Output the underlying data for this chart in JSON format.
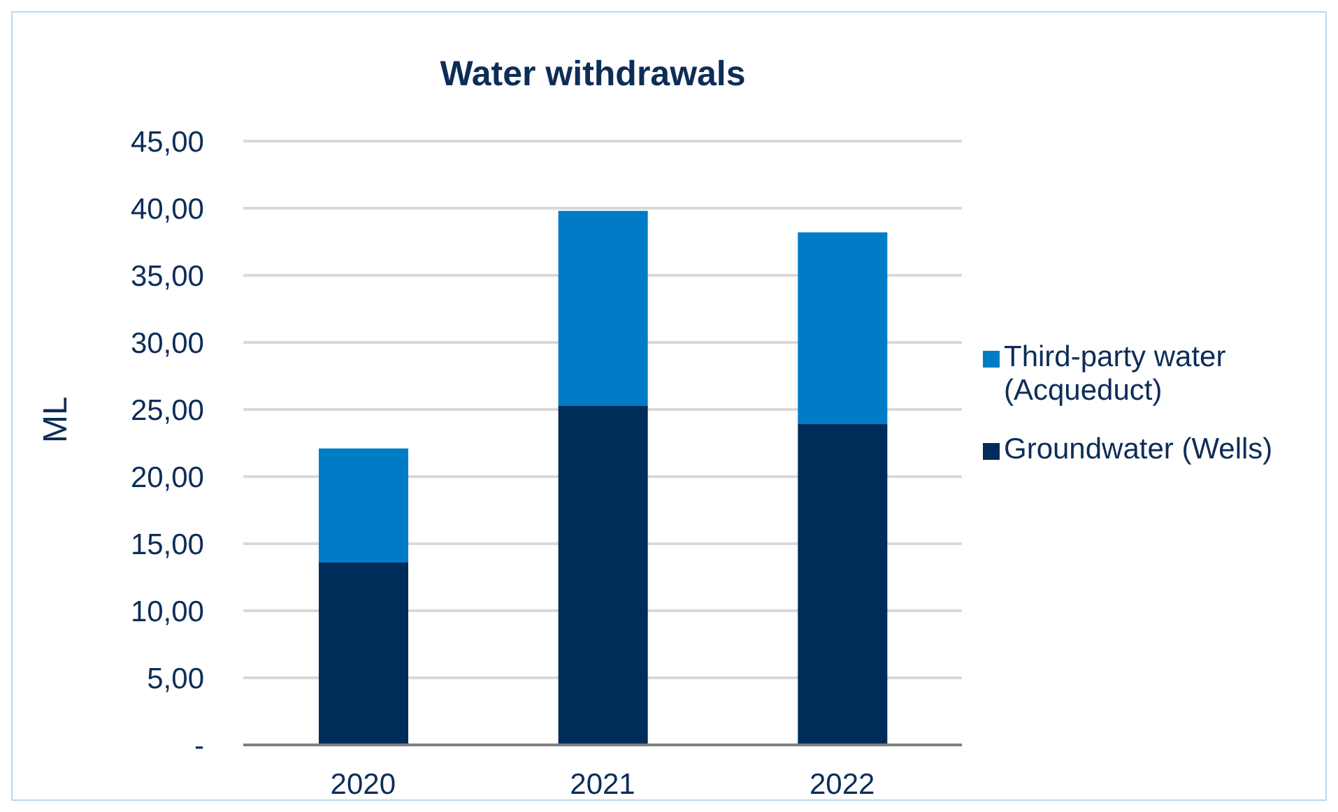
{
  "chart_data": {
    "type": "bar",
    "title": "Water withdrawals",
    "ylabel": "ML",
    "categories": [
      "2020",
      "2021",
      "2022"
    ],
    "stacked": true,
    "series": [
      {
        "name": "Groundwater (Wells)",
        "color": "#002c5a",
        "values": [
          13.6,
          25.3,
          23.9
        ]
      },
      {
        "name": "Third-party water (Acqueduct)",
        "color": "#007cc7",
        "values": [
          8.5,
          14.5,
          14.3
        ]
      }
    ],
    "ylim": [
      0,
      45
    ],
    "yticks": [
      {
        "value": 0,
        "label": "-"
      },
      {
        "value": 5,
        "label": "5,00"
      },
      {
        "value": 10,
        "label": "10,00"
      },
      {
        "value": 15,
        "label": "15,00"
      },
      {
        "value": 20,
        "label": "20,00"
      },
      {
        "value": 25,
        "label": "25,00"
      },
      {
        "value": 30,
        "label": "30,00"
      },
      {
        "value": 35,
        "label": "35,00"
      },
      {
        "value": 40,
        "label": "40,00"
      },
      {
        "value": 45,
        "label": "45,00"
      }
    ],
    "grid": "y",
    "legend": "right"
  }
}
